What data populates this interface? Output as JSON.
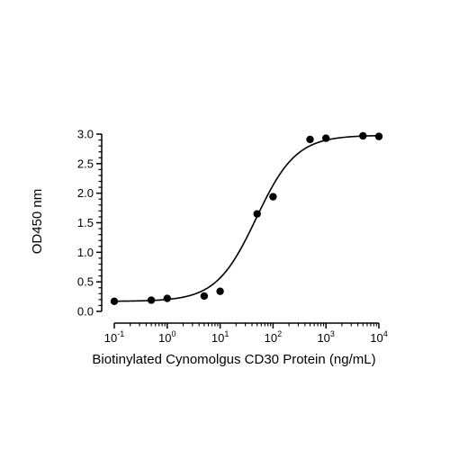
{
  "chart_data": {
    "type": "scatter",
    "xlabel": "Biotinylated Cynomolgus CD30 Protein (ng/mL)",
    "ylabel": "OD450 nm",
    "x_scale": "log",
    "xlim": [
      0.1,
      10000
    ],
    "ylim": [
      0.0,
      3.0
    ],
    "x_ticks": [
      {
        "value": 0.1,
        "base": "10",
        "exp": "-1"
      },
      {
        "value": 1,
        "base": "10",
        "exp": "0"
      },
      {
        "value": 10,
        "base": "10",
        "exp": "1"
      },
      {
        "value": 100,
        "base": "10",
        "exp": "2"
      },
      {
        "value": 1000,
        "base": "10",
        "exp": "3"
      },
      {
        "value": 10000,
        "base": "10",
        "exp": "4"
      }
    ],
    "y_ticks": [
      {
        "value": 0.0,
        "label": "0.0"
      },
      {
        "value": 0.5,
        "label": "0.5"
      },
      {
        "value": 1.0,
        "label": "1.0"
      },
      {
        "value": 1.5,
        "label": "1.5"
      },
      {
        "value": 2.0,
        "label": "2.0"
      },
      {
        "value": 2.5,
        "label": "2.5"
      },
      {
        "value": 3.0,
        "label": "3.0"
      }
    ],
    "points": [
      {
        "x": 0.1,
        "y": 0.17
      },
      {
        "x": 0.5,
        "y": 0.19
      },
      {
        "x": 1,
        "y": 0.22
      },
      {
        "x": 5,
        "y": 0.26
      },
      {
        "x": 10,
        "y": 0.34
      },
      {
        "x": 50,
        "y": 1.65
      },
      {
        "x": 100,
        "y": 1.94
      },
      {
        "x": 500,
        "y": 2.91
      },
      {
        "x": 1000,
        "y": 2.93
      },
      {
        "x": 5000,
        "y": 2.97
      },
      {
        "x": 10000,
        "y": 2.96
      }
    ],
    "fit": {
      "model": "4PL",
      "bottom": 0.17,
      "top": 2.98,
      "ec50": 48,
      "hill": 1.15
    },
    "grid": false,
    "legend": "none",
    "colors": {
      "marker": "#000000",
      "line": "#000000",
      "axis": "#000000"
    }
  }
}
